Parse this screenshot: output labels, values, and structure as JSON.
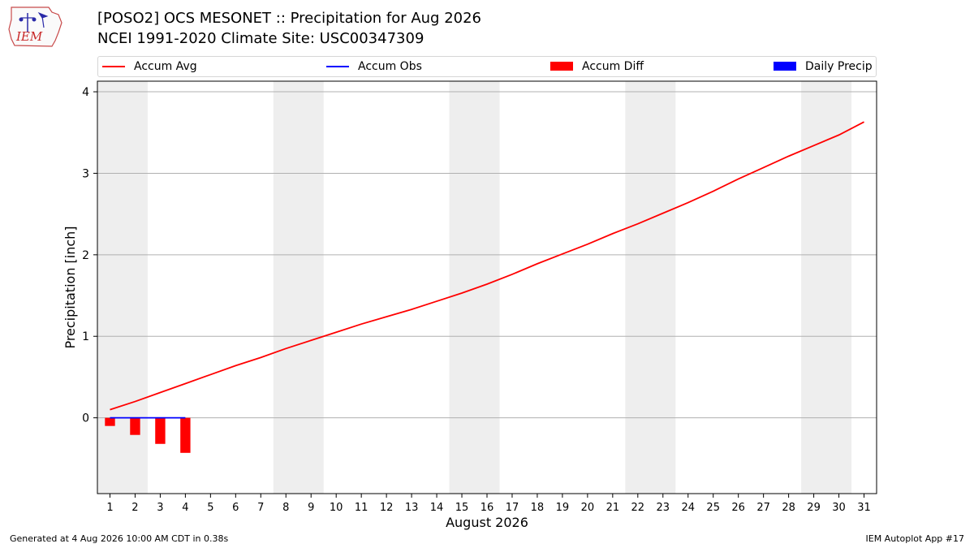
{
  "header": {
    "logo_text": "IEM",
    "title_line1": "[POSO2] OCS MESONET :: Precipitation for Aug 2026",
    "title_line2": "NCEI 1991-2020 Climate Site: USC00347309"
  },
  "legend": {
    "placement": "top",
    "items": [
      {
        "label": "Accum Avg",
        "kind": "line",
        "color": "#ff0000"
      },
      {
        "label": "Accum Obs",
        "kind": "line",
        "color": "#0000ff"
      },
      {
        "label": "Accum Diff",
        "kind": "bar",
        "color": "#ff0000"
      },
      {
        "label": "Daily Precip",
        "kind": "bar",
        "color": "#0000ff"
      }
    ]
  },
  "footer": {
    "left": "Generated at 4 Aug 2026 10:00 AM CDT in 0.38s",
    "right": "IEM Autoplot App #17"
  },
  "chart_data": {
    "type": "line",
    "title": "[POSO2] OCS MESONET :: Precipitation for Aug 2026",
    "subtitle": "NCEI 1991-2020 Climate Site: USC00347309",
    "xlabel": "August 2026",
    "ylabel": "Precipitation [inch]",
    "xlim": [
      0.5,
      31.5
    ],
    "ylim": [
      -0.93,
      4.13
    ],
    "yticks": [
      0,
      1,
      2,
      3,
      4
    ],
    "xticks": [
      1,
      2,
      3,
      4,
      5,
      6,
      7,
      8,
      9,
      10,
      11,
      12,
      13,
      14,
      15,
      16,
      17,
      18,
      19,
      20,
      21,
      22,
      23,
      24,
      25,
      26,
      27,
      28,
      29,
      30,
      31
    ],
    "grid": "horizontal",
    "weekend_shading": {
      "color": "#eeeeee",
      "spans": [
        [
          0.5,
          2.5
        ],
        [
          7.5,
          9.5
        ],
        [
          14.5,
          16.5
        ],
        [
          21.5,
          23.5
        ],
        [
          28.5,
          30.5
        ]
      ]
    },
    "series": [
      {
        "name": "Accum Avg",
        "kind": "line",
        "color": "#ff0000",
        "x": [
          1,
          2,
          3,
          4,
          5,
          6,
          7,
          8,
          9,
          10,
          11,
          12,
          13,
          14,
          15,
          16,
          17,
          18,
          19,
          20,
          21,
          22,
          23,
          24,
          25,
          26,
          27,
          28,
          29,
          30,
          31
        ],
        "values": [
          0.1,
          0.2,
          0.31,
          0.42,
          0.53,
          0.64,
          0.74,
          0.85,
          0.95,
          1.05,
          1.15,
          1.24,
          1.33,
          1.43,
          1.53,
          1.64,
          1.76,
          1.89,
          2.01,
          2.13,
          2.26,
          2.38,
          2.51,
          2.64,
          2.78,
          2.93,
          3.07,
          3.21,
          3.34,
          3.47,
          3.63
        ]
      },
      {
        "name": "Accum Obs",
        "kind": "line",
        "color": "#0000ff",
        "x": [
          1,
          2,
          3,
          4
        ],
        "values": [
          0.0,
          0.0,
          0.0,
          0.0
        ]
      },
      {
        "name": "Accum Diff",
        "kind": "bar",
        "color": "#ff0000",
        "x": [
          1,
          2,
          3,
          4
        ],
        "values": [
          -0.1,
          -0.21,
          -0.32,
          -0.43
        ]
      },
      {
        "name": "Daily Precip",
        "kind": "bar",
        "color": "#0000ff",
        "x": [
          1,
          2,
          3,
          4
        ],
        "values": [
          0.0,
          0.0,
          0.0,
          0.0
        ]
      }
    ]
  }
}
